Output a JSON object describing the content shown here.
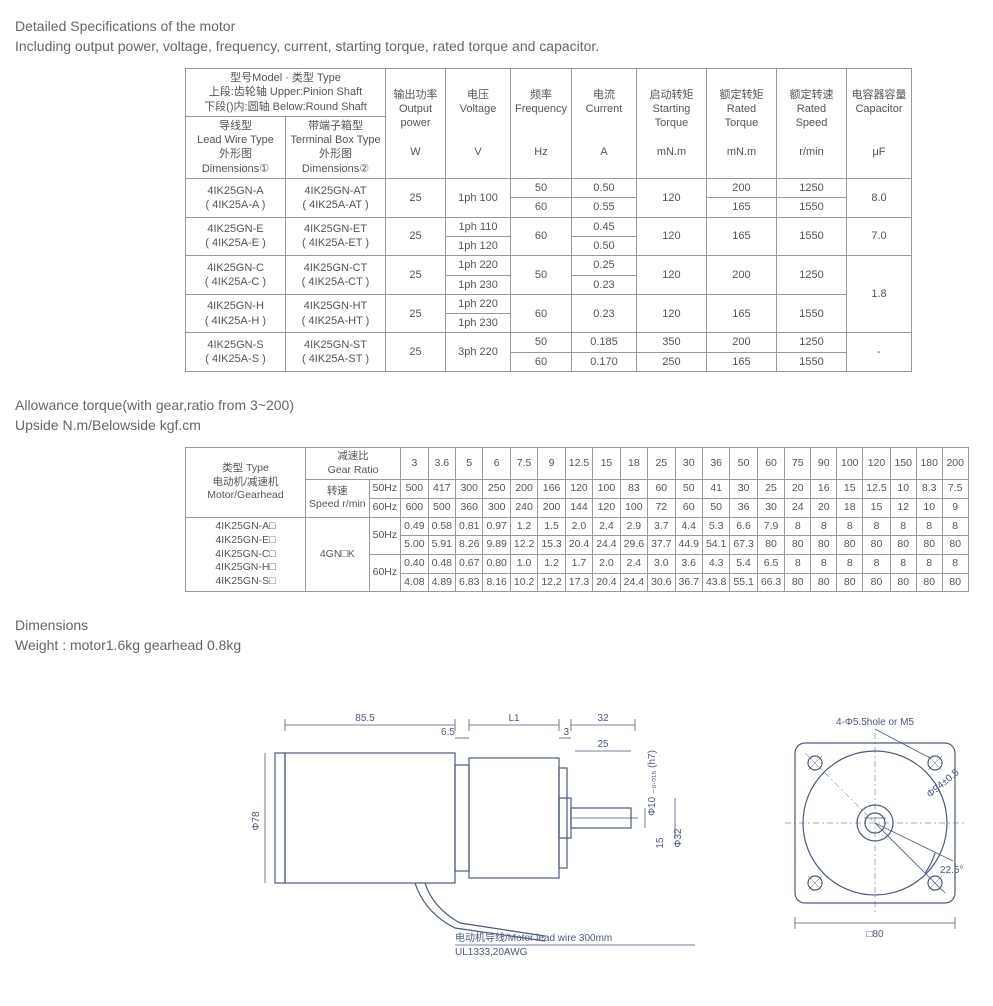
{
  "heading1": "Detailed Specifications of the motor",
  "sub1": "Including output power, voltage, frequency, current, starting torque, rated torque and capacitor.",
  "spec": {
    "hdr_model": "型号Model · 类型 Type",
    "hdr_pinion": "上段:齿轮轴  Upper:Pinion Shaft",
    "hdr_round": "下段()内:圆轴 Below:Round Shaft",
    "hdr_lead": "导线型\nLead Wire Type\n外形图Dimensions①",
    "hdr_tbox": "带端子箱型\nTerminal Box Type\n外形图Dimensions②",
    "hdr_power": "输出功率\nOutput\npower\n\nW",
    "hdr_volt": "电压\nVoltage\n\n\nV",
    "hdr_freq": "频率\nFrequency\n\n\nHz",
    "hdr_curr": "电流\nCurrent\n\n\nA",
    "hdr_start": "启动转矩\nStarting\nTorque\n\nmN.m",
    "hdr_rated_t": "额定转矩\nRated\nTorque\n\nmN.m",
    "hdr_rated_s": "额定转速\nRated\nSpeed\n\nr/min",
    "hdr_cap": "电容器容量\nCapacitor\n\n\nμF",
    "rows": [
      {
        "m1": "4IK25GN-A\n( 4IK25A-A )",
        "m2": "4IK25GN-AT\n( 4IK25A-AT )",
        "pw": "25",
        "v": "1ph 100",
        "f": [
          "50",
          "60"
        ],
        "c": [
          "0.50",
          "0.55"
        ],
        "st": "120",
        "rt": [
          "200",
          "165"
        ],
        "rs": [
          "1250",
          "1550"
        ],
        "cap": "8.0"
      },
      {
        "m1": "4IK25GN-E\n( 4IK25A-E )",
        "m2": "4IK25GN-ET\n( 4IK25A-ET )",
        "pw": "25",
        "v": [
          "1ph 110",
          "1ph 120"
        ],
        "f": "60",
        "c": [
          "0.45",
          "0.50"
        ],
        "st": "120",
        "rt": "165",
        "rs": "1550",
        "cap": "7.0"
      },
      {
        "m1": "4IK25GN-C\n( 4IK25A-C )",
        "m2": "4IK25GN-CT\n( 4IK25A-CT )",
        "pw": "25",
        "v": [
          "1ph 220",
          "1ph 230"
        ],
        "f": "50",
        "c": [
          "0.25",
          "0.23"
        ],
        "st": "120",
        "rt": "200",
        "rs": "1250",
        "cap": null
      },
      {
        "m1": "4IK25GN-H\n( 4IK25A-H )",
        "m2": "4IK25GN-HT\n( 4IK25A-HT )",
        "pw": "25",
        "v": [
          "1ph 220",
          "1ph 230"
        ],
        "f": "60",
        "c": "0.23",
        "st": "120",
        "rt": "165",
        "rs": "1550",
        "cap": "1.8"
      },
      {
        "m1": "4IK25GN-S\n( 4IK25A-S )",
        "m2": "4IK25GN-ST\n( 4IK25A-ST )",
        "pw": "25",
        "v": "3ph 220",
        "f": [
          "50",
          "60"
        ],
        "c": [
          "0.185",
          "0.170"
        ],
        "st": [
          "350",
          "250"
        ],
        "rt": [
          "200",
          "165"
        ],
        "rs": [
          "1250",
          "1550"
        ],
        "cap": "-"
      }
    ]
  },
  "heading2": "Allowance torque(with gear,ratio from 3~200)",
  "sub2": "Upside N.m/Belowside kgf.cm",
  "torque": {
    "type_lbl": "类型 Type\n电动机/减速机\nMotor/Gearhead",
    "ratio_lbl": "减速比\nGear Ratio",
    "speed_lbl": "转速\nSpeed r/min",
    "ratios": [
      "3",
      "3.6",
      "5",
      "6",
      "7.5",
      "9",
      "12.5",
      "15",
      "18",
      "25",
      "30",
      "36",
      "50",
      "60",
      "75",
      "90",
      "100",
      "120",
      "150",
      "180",
      "200"
    ],
    "speed50": [
      "500",
      "417",
      "300",
      "250",
      "200",
      "166",
      "120",
      "100",
      "83",
      "60",
      "50",
      "41",
      "30",
      "25",
      "20",
      "16",
      "15",
      "12.5",
      "10",
      "8.3",
      "7.5"
    ],
    "speed60": [
      "600",
      "500",
      "360",
      "300",
      "240",
      "200",
      "144",
      "120",
      "100",
      "72",
      "60",
      "50",
      "36",
      "30",
      "24",
      "20",
      "18",
      "15",
      "12",
      "10",
      "9"
    ],
    "models": [
      "4IK25GN-A□",
      "4IK25GN-E□",
      "4IK25GN-C□",
      "4IK25GN-H□",
      "4IK25GN-S□"
    ],
    "gcode": "4GN□K",
    "r50a": [
      "0.49",
      "0.58",
      "0.81",
      "0.97",
      "1.2",
      "1.5",
      "2.0",
      "2.4",
      "2.9",
      "3.7",
      "4.4",
      "5.3",
      "6.6",
      "7.9",
      "8",
      "8",
      "8",
      "8",
      "8",
      "8",
      "8"
    ],
    "r50b": [
      "5.00",
      "5.91",
      "8.26",
      "9.89",
      "12.2",
      "15.3",
      "20.4",
      "24.4",
      "29.6",
      "37.7",
      "44.9",
      "54.1",
      "67.3",
      "80",
      "80",
      "80",
      "80",
      "80",
      "80",
      "80",
      "80"
    ],
    "r60a": [
      "0.40",
      "0.48",
      "0.67",
      "0.80",
      "1.0",
      "1.2",
      "1.7",
      "2.0",
      "2.4",
      "3.0",
      "3.6",
      "4.3",
      "5.4",
      "6.5",
      "8",
      "8",
      "8",
      "8",
      "8",
      "8",
      "8"
    ],
    "r60b": [
      "4.08",
      "4.89",
      "6.83",
      "8.16",
      "10.2",
      "12.2",
      "17.3",
      "20.4",
      "24.4",
      "30.6",
      "36.7",
      "43.8",
      "55.1",
      "66.3",
      "80",
      "80",
      "80",
      "80",
      "80",
      "80",
      "80"
    ]
  },
  "heading3": "Dimensions",
  "sub3": "Weight : motor1.6kg gearhead 0.8kg",
  "dims": {
    "len_body": "85.5",
    "gap": "6.5",
    "l1": "L1",
    "shaft_cap": "3",
    "front": "32",
    "shaft_len": "25",
    "shaft_dia": "Φ10 ₋₀.ₒ₁₅ (h7)",
    "body_dia": "Φ78",
    "front_dia": "Φ32",
    "shaft_h": "15",
    "hole_note": "4-Φ5.5hole or M5",
    "circle_dia": "Φ94±0.5",
    "square": "□80",
    "angle": "22.5°",
    "lead": "电动机导线/Motor lead wire 300mm",
    "lead2": "UL1333,20AWG"
  },
  "colors": {
    "line": "#4c5a7a",
    "text": "#666"
  }
}
